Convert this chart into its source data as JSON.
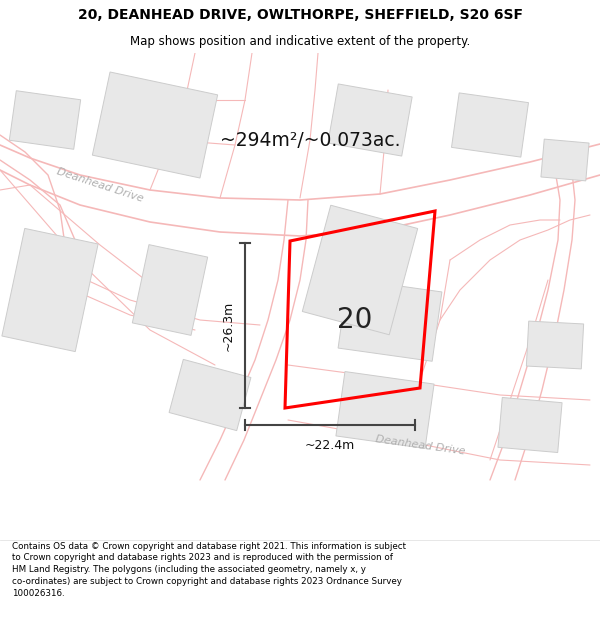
{
  "title_line1": "20, DEANHEAD DRIVE, OWLTHORPE, SHEFFIELD, S20 6SF",
  "title_line2": "Map shows position and indicative extent of the property.",
  "area_label": "~294m²/~0.073ac.",
  "property_number": "20",
  "dim_vertical": "~26.3m",
  "dim_horizontal": "~22.4m",
  "street_label1": "Deanhead Drive",
  "street_label2": "Deanhead Drive",
  "footer_text": "Contains OS data © Crown copyright and database right 2021. This information is subject to Crown copyright and database rights 2023 and is reproduced with the permission of HM Land Registry. The polygons (including the associated geometry, namely x, y co-ordinates) are subject to Crown copyright and database rights 2023 Ordnance Survey 100026316.",
  "map_bg": "#f9f9f9",
  "building_fill": "#e8e8e8",
  "building_edge": "#cccccc",
  "road_line_color": "#f5b8b8",
  "plot_line_color": "#f5b8b8",
  "property_outline_color": "#ff0000",
  "dim_line_color": "#444444",
  "street_text_color": "#aaaaaa",
  "title_bg": "#ffffff",
  "footer_bg": "#ffffff"
}
